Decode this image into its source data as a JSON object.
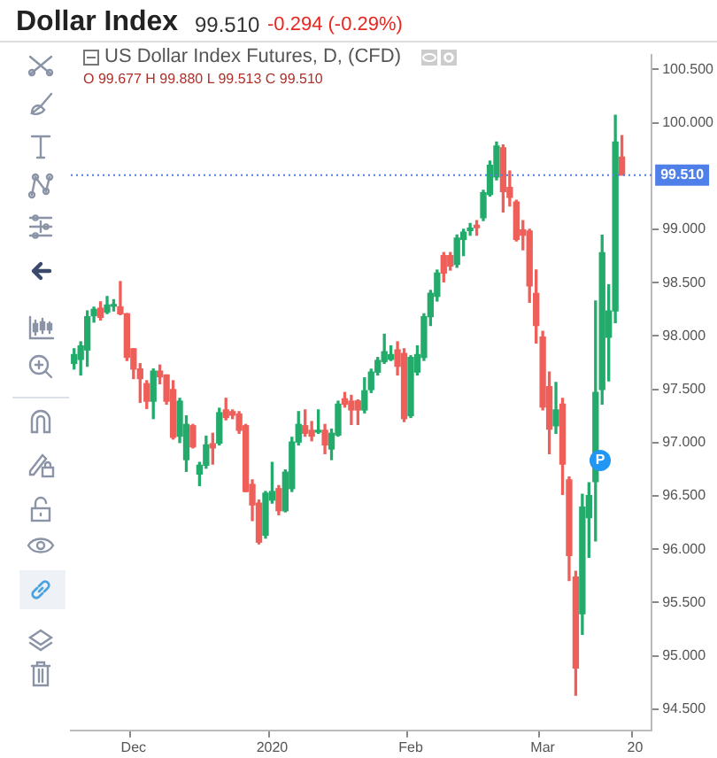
{
  "chart_data": {
    "type": "candlestick",
    "title": "Dollar Index",
    "subtitle": "99.510",
    "annotations": [
      "-0.294 (-0.29%)",
      "US Dollar Index Futures, D, (CFD)",
      "O 99.677 H 99.880 L 99.513 C 99.510",
      "P"
    ],
    "categories": [
      null,
      null,
      null,
      null,
      null,
      null,
      null,
      null,
      null,
      "Dec",
      null,
      null,
      null,
      null,
      null,
      null,
      null,
      null,
      null,
      null,
      null,
      null,
      null,
      null,
      null,
      null,
      null,
      null,
      null,
      null,
      "2020",
      null,
      null,
      null,
      null,
      null,
      null,
      null,
      null,
      null,
      null,
      null,
      null,
      null,
      null,
      null,
      null,
      null,
      null,
      null,
      null,
      "Feb",
      null,
      null,
      null,
      null,
      null,
      null,
      null,
      null,
      null,
      null,
      null,
      null,
      null,
      null,
      null,
      null,
      null,
      null,
      null,
      "Mar",
      null,
      null,
      null,
      null,
      null,
      null,
      null,
      null,
      null,
      null,
      null,
      null,
      null,
      "20",
      null,
      null
    ],
    "ohlc": [
      [
        97.743,
        97.88,
        97.69,
        97.825
      ],
      [
        97.78,
        97.945,
        97.634,
        97.907
      ],
      [
        97.869,
        98.235,
        97.716,
        98.18
      ],
      [
        98.19,
        98.27,
        98.13,
        98.25
      ],
      [
        98.26,
        98.32,
        98.15,
        98.175
      ],
      [
        98.224,
        98.37,
        98.21,
        98.29
      ],
      [
        98.28,
        98.34,
        98.235,
        98.295
      ],
      [
        98.273,
        98.51,
        98.2,
        98.208
      ],
      [
        98.208,
        98.21,
        97.77,
        97.8
      ],
      [
        97.88,
        97.88,
        97.6,
        97.69
      ],
      [
        97.69,
        97.74,
        97.377,
        97.6
      ],
      [
        97.552,
        97.58,
        97.32,
        97.388
      ],
      [
        97.388,
        97.69,
        97.225,
        97.67
      ],
      [
        97.67,
        97.727,
        97.552,
        97.617
      ],
      [
        97.634,
        97.634,
        97.36,
        97.388
      ],
      [
        97.497,
        97.58,
        97.033,
        97.049
      ],
      [
        97.06,
        97.415,
        97.0,
        97.388
      ],
      [
        96.84,
        97.25,
        96.73,
        97.17
      ],
      [
        97.158,
        97.17,
        96.95,
        96.96
      ],
      [
        96.705,
        96.814,
        96.596,
        96.787
      ],
      [
        96.787,
        97.06,
        96.76,
        96.978
      ],
      [
        96.989,
        97.087,
        96.798,
        96.95
      ],
      [
        96.995,
        97.322,
        96.978,
        97.28
      ],
      [
        97.306,
        97.415,
        97.213,
        97.235
      ],
      [
        97.29,
        97.306,
        97.224,
        97.257
      ],
      [
        97.268,
        97.29,
        97.087,
        97.115
      ],
      [
        97.158,
        97.17,
        96.54,
        96.541
      ],
      [
        96.607,
        96.65,
        96.268,
        96.415
      ],
      [
        96.432,
        96.46,
        96.05,
        96.066
      ],
      [
        96.131,
        96.541,
        96.104,
        96.525
      ],
      [
        96.46,
        96.814,
        96.432,
        96.541
      ],
      [
        96.568,
        96.596,
        96.323,
        96.361
      ],
      [
        96.361,
        96.743,
        96.35,
        96.722
      ],
      [
        96.568,
        97.049,
        96.541,
        97.005
      ],
      [
        97.005,
        97.29,
        96.978,
        97.17
      ],
      [
        97.158,
        97.306,
        97.06,
        97.087
      ],
      [
        97.115,
        97.197,
        97.017,
        97.06
      ],
      [
        97.099,
        97.306,
        97.087,
        97.115
      ],
      [
        97.115,
        97.17,
        96.896,
        96.978
      ],
      [
        96.94,
        97.126,
        96.84,
        97.087
      ],
      [
        97.071,
        97.388,
        97.06,
        97.36
      ],
      [
        97.41,
        97.47,
        97.333,
        97.36
      ],
      [
        97.388,
        97.443,
        97.17,
        97.306
      ],
      [
        97.39,
        97.4,
        97.17,
        97.306
      ],
      [
        97.306,
        97.607,
        97.279,
        97.486
      ],
      [
        97.497,
        97.688,
        97.47,
        97.661
      ],
      [
        97.661,
        97.798,
        97.634,
        97.77
      ],
      [
        97.76,
        98.016,
        97.743,
        97.852
      ],
      [
        97.781,
        97.907,
        97.77,
        97.825
      ],
      [
        97.869,
        97.945,
        97.634,
        97.716
      ],
      [
        97.836,
        97.88,
        97.197,
        97.225
      ],
      [
        97.252,
        97.814,
        97.235,
        97.798
      ],
      [
        97.661,
        97.907,
        97.634,
        97.825
      ],
      [
        97.798,
        98.208,
        97.771,
        98.181
      ],
      [
        98.181,
        98.427,
        98.098,
        98.4
      ],
      [
        98.372,
        98.618,
        98.328,
        98.59
      ],
      [
        98.754,
        98.782,
        98.508,
        98.59
      ],
      [
        98.754,
        98.782,
        98.618,
        98.656
      ],
      [
        98.672,
        98.946,
        98.645,
        98.918
      ],
      [
        98.907,
        99.0,
        98.754,
        98.973
      ],
      [
        98.989,
        99.055,
        98.946,
        99.011
      ],
      [
        99.038,
        99.082,
        98.946,
        99.016
      ],
      [
        99.109,
        99.366,
        99.082,
        99.344
      ],
      [
        99.328,
        99.64,
        99.312,
        99.601
      ],
      [
        99.492,
        99.82,
        99.465,
        99.782
      ],
      [
        99.765,
        99.792,
        99.164,
        99.355
      ],
      [
        99.393,
        99.547,
        99.219,
        99.3
      ],
      [
        99.257,
        99.273,
        98.891,
        98.907
      ],
      [
        98.995,
        99.082,
        98.809,
        98.946
      ],
      [
        98.984,
        99.0,
        98.317,
        98.47
      ],
      [
        98.399,
        98.618,
        97.935,
        98.098
      ],
      [
        97.989,
        98.044,
        97.306,
        97.334
      ],
      [
        97.525,
        97.661,
        96.896,
        97.126
      ],
      [
        97.158,
        97.563,
        97.087,
        97.306
      ],
      [
        97.361,
        97.415,
        96.514,
        96.798
      ],
      [
        96.65,
        96.678,
        95.705,
        95.94
      ],
      [
        95.738,
        95.793,
        94.629,
        94.886
      ],
      [
        95.394,
        96.514,
        95.202,
        96.394
      ],
      [
        96.295,
        96.623,
        95.924,
        96.503
      ],
      [
        96.634,
        98.328,
        96.077,
        97.47
      ],
      [
        97.497,
        98.945,
        97.361,
        98.781
      ],
      [
        97.989,
        98.48,
        97.579,
        98.235
      ],
      [
        98.235,
        100.07,
        98.126,
        99.82
      ],
      [
        99.677,
        99.88,
        99.51,
        99.51
      ],
      null,
      null,
      null,
      null
    ],
    "colors": [
      "#22ab6b",
      "#22ab6b",
      "#22ab6b",
      "#22ab6b",
      "#ef5f5a",
      "#22ab6b",
      "#22ab6b",
      "#ef5f5a",
      "#ef5f5a",
      "#ef5f5a",
      "#ef5f5a",
      "#ef5f5a",
      "#22ab6b",
      "#ef5f5a",
      "#ef5f5a",
      "#ef5f5a",
      "#22ab6b",
      "#22ab6b",
      "#ef5f5a",
      "#22ab6b",
      "#22ab6b",
      "#ef5f5a",
      "#22ab6b",
      "#ef5f5a",
      "#ef5f5a",
      "#ef5f5a",
      "#ef5f5a",
      "#ef5f5a",
      "#ef5f5a",
      "#22ab6b",
      "#22ab6b",
      "#ef5f5a",
      "#22ab6b",
      "#22ab6b",
      "#22ab6b",
      "#ef5f5a",
      "#ef5f5a",
      "#22ab6b",
      "#ef5f5a",
      "#22ab6b",
      "#22ab6b",
      "#ef5f5a",
      "#ef5f5a",
      "#ef5f5a",
      "#22ab6b",
      "#22ab6b",
      "#22ab6b",
      "#22ab6b",
      "#22ab6b",
      "#ef5f5a",
      "#ef5f5a",
      "#22ab6b",
      "#22ab6b",
      "#22ab6b",
      "#22ab6b",
      "#22ab6b",
      "#ef5f5a",
      "#ef5f5a",
      "#22ab6b",
      "#22ab6b",
      "#22ab6b",
      "#ef5f5a",
      "#22ab6b",
      "#22ab6b",
      "#22ab6b",
      "#ef5f5a",
      "#ef5f5a",
      "#ef5f5a",
      "#ef5f5a",
      "#ef5f5a",
      "#ef5f5a",
      "#ef5f5a",
      "#ef5f5a",
      "#22ab6b",
      "#ef5f5a",
      "#ef5f5a",
      "#ef5f5a",
      "#22ab6b",
      "#22ab6b",
      "#22ab6b",
      "#22ab6b",
      "#22ab6b",
      "#22ab6b",
      "#ef5f5a",
      null,
      null,
      null,
      null
    ],
    "ylim": [
      94.3,
      100.64
    ],
    "yticks": [
      {
        "value": 94.5,
        "label": "94.500"
      },
      {
        "value": 95,
        "label": "95.000"
      },
      {
        "value": 95.5,
        "label": "95.500"
      },
      {
        "value": 96,
        "label": "96.000"
      },
      {
        "value": 96.5,
        "label": "96.500"
      },
      {
        "value": 97,
        "label": "97.000"
      },
      {
        "value": 97.5,
        "label": "97.500"
      },
      {
        "value": 98,
        "label": "98.000"
      },
      {
        "value": 98.5,
        "label": "98.500"
      },
      {
        "value": 99,
        "label": "99.000"
      },
      {
        "value": 100,
        "label": "100.000"
      },
      {
        "value": 100.5,
        "label": "100.500"
      }
    ],
    "ref_lines": [
      {
        "axis": "y",
        "value": 99.51,
        "label": "99.510",
        "color": "#4f7fe8",
        "line_style": "dotted"
      }
    ]
  }
}
